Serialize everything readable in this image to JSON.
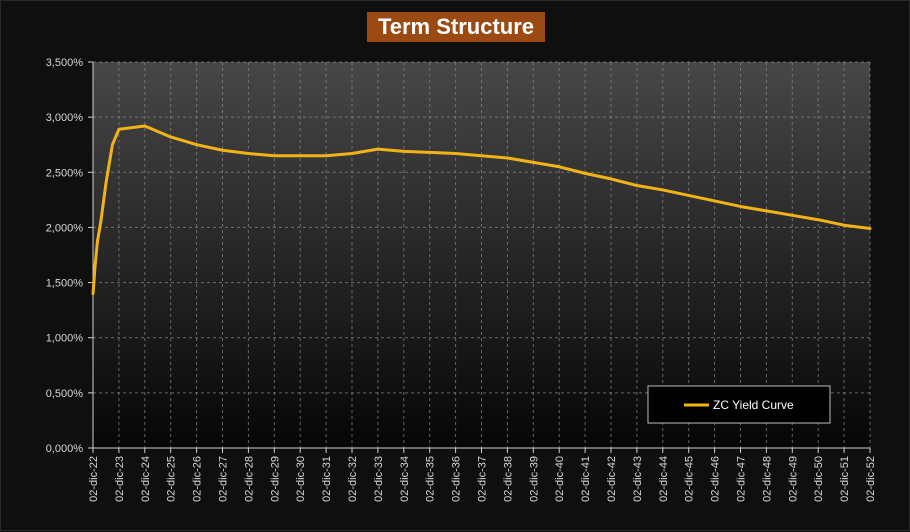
{
  "chart_data": {
    "type": "line",
    "title": "Term Structure",
    "colors": {
      "line": "#f2b316",
      "title_bg": "#9a4a12",
      "plot_top": "#474747",
      "plot_bottom": "#060606",
      "grid": "#8a8a8a"
    },
    "ylim": [
      0,
      3.5
    ],
    "yticks": [
      "0,000%",
      "0,500%",
      "1,000%",
      "1,500%",
      "2,000%",
      "2,500%",
      "3,000%",
      "3,500%"
    ],
    "xlim": [
      2022,
      2052
    ],
    "categories": [
      "02-dic-22",
      "02-dic-23",
      "02-dic-24",
      "02-dic-25",
      "02-dic-26",
      "02-dic-27",
      "02-dic-28",
      "02-dic-29",
      "02-dic-30",
      "02-dic-31",
      "02-dic-32",
      "02-dic-33",
      "02-dic-34",
      "02-dic-35",
      "02-dic-36",
      "02-dic-37",
      "02-dic-38",
      "02-dic-39",
      "02-dic-40",
      "02-dic-41",
      "02-dic-42",
      "02-dic-43",
      "02-dic-44",
      "02-dic-45",
      "02-dic-46",
      "02-dic-47",
      "02-dic-48",
      "02-dic-49",
      "02-dic-50",
      "02-dic-51",
      "02-dic-52"
    ],
    "grid": true,
    "legend_position": "bottom-right",
    "series": [
      {
        "name": "ZC Yield Curve",
        "points": [
          [
            2022.0,
            1.4
          ],
          [
            2022.08,
            1.65
          ],
          [
            2022.17,
            1.87
          ],
          [
            2022.3,
            2.05
          ],
          [
            2022.5,
            2.4
          ],
          [
            2022.75,
            2.75
          ],
          [
            2023.0,
            2.89
          ],
          [
            2024.0,
            2.92
          ],
          [
            2025.0,
            2.82
          ],
          [
            2026.0,
            2.75
          ],
          [
            2027.0,
            2.7
          ],
          [
            2028.0,
            2.67
          ],
          [
            2029.0,
            2.65
          ],
          [
            2030.0,
            2.65
          ],
          [
            2031.0,
            2.65
          ],
          [
            2032.0,
            2.67
          ],
          [
            2033.0,
            2.71
          ],
          [
            2034.0,
            2.69
          ],
          [
            2035.0,
            2.68
          ],
          [
            2036.0,
            2.67
          ],
          [
            2037.0,
            2.65
          ],
          [
            2038.0,
            2.63
          ],
          [
            2039.0,
            2.59
          ],
          [
            2040.0,
            2.55
          ],
          [
            2041.0,
            2.49
          ],
          [
            2042.0,
            2.44
          ],
          [
            2043.0,
            2.38
          ],
          [
            2044.0,
            2.34
          ],
          [
            2045.0,
            2.29
          ],
          [
            2046.0,
            2.24
          ],
          [
            2047.0,
            2.19
          ],
          [
            2048.0,
            2.15
          ],
          [
            2049.0,
            2.11
          ],
          [
            2050.0,
            2.07
          ],
          [
            2051.0,
            2.02
          ],
          [
            2052.0,
            1.99
          ]
        ]
      }
    ]
  }
}
